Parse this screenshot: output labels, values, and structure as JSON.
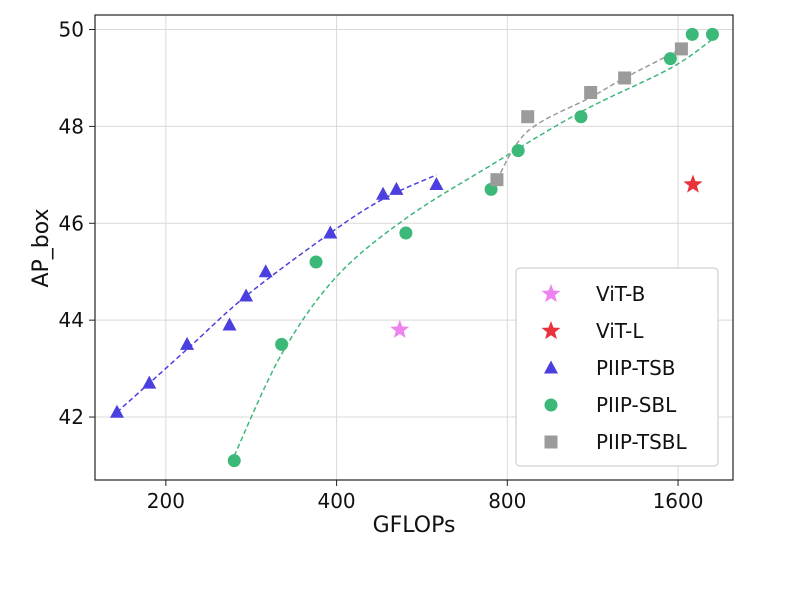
{
  "chart_data": {
    "type": "scatter",
    "xlabel": "GFLOPs",
    "ylabel": "AP_box",
    "x_scale": "log2",
    "xlim": [
      150,
      2000
    ],
    "ylim": [
      40.7,
      50.3
    ],
    "x_ticks": [
      200,
      400,
      800,
      1600
    ],
    "y_ticks": [
      42,
      44,
      46,
      48,
      50
    ],
    "grid": true,
    "legend_position": "lower-right",
    "series": [
      {
        "name": "ViT-B",
        "marker": "star",
        "color": "#ee82ee",
        "points": [
          [
            517,
            43.8
          ]
        ]
      },
      {
        "name": "ViT-L",
        "marker": "star",
        "color": "#e8333a",
        "points": [
          [
            1700,
            46.8
          ]
        ],
        "fit_line": false
      },
      {
        "name": "PIIP-TSB",
        "marker": "triangle",
        "color": "#4b3fe0",
        "points": [
          [
            164,
            42.1
          ],
          [
            187,
            42.7
          ],
          [
            218,
            43.5
          ],
          [
            259,
            43.9
          ],
          [
            277,
            44.5
          ],
          [
            300,
            45.0
          ],
          [
            390,
            45.8
          ],
          [
            483,
            46.6
          ],
          [
            510,
            46.7
          ],
          [
            600,
            46.8
          ]
        ],
        "trend": [
          [
            164,
            42.1
          ],
          [
            218,
            43.4
          ],
          [
            277,
            44.5
          ],
          [
            390,
            45.8
          ],
          [
            483,
            46.5
          ],
          [
            600,
            47.0
          ]
        ]
      },
      {
        "name": "PIIP-SBL",
        "marker": "circle",
        "color": "#3cb878",
        "points": [
          [
            264,
            41.1
          ],
          [
            320,
            43.5
          ],
          [
            368,
            45.2
          ],
          [
            530,
            45.8
          ],
          [
            749,
            46.7
          ],
          [
            836,
            47.5
          ],
          [
            1079,
            48.2
          ],
          [
            1551,
            49.4
          ],
          [
            1695,
            49.9
          ],
          [
            1840,
            49.9
          ]
        ],
        "trend": [
          [
            264,
            41.2
          ],
          [
            320,
            43.3
          ],
          [
            400,
            44.9
          ],
          [
            530,
            46.1
          ],
          [
            749,
            47.2
          ],
          [
            1079,
            48.3
          ],
          [
            1551,
            49.2
          ],
          [
            1840,
            49.8
          ]
        ]
      },
      {
        "name": "PIIP-TSBL",
        "marker": "square",
        "color": "#9b9b9b",
        "points": [
          [
            767,
            46.9
          ],
          [
            869,
            48.2
          ],
          [
            1122,
            48.7
          ],
          [
            1288,
            49.0
          ],
          [
            1622,
            49.6
          ]
        ],
        "trend": [
          [
            767,
            46.9
          ],
          [
            869,
            47.9
          ],
          [
            1122,
            48.6
          ],
          [
            1288,
            49.0
          ],
          [
            1622,
            49.6
          ]
        ]
      }
    ]
  }
}
